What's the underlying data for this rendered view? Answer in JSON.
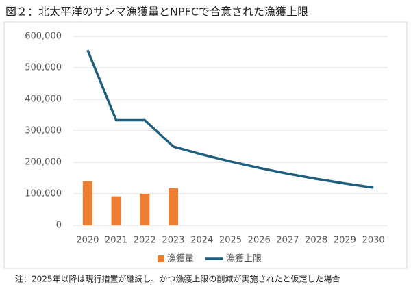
{
  "chart_data": {
    "type": "bar",
    "title": "図２：北太平洋のサンマ漁獲量とNPFCで合意された漁獲上限",
    "note": "注：2025年以降は現行措置が継続し、かつ漁獲上限の削減が実施されたと仮定した場合",
    "categories": [
      "2020",
      "2021",
      "2022",
      "2023",
      "2024",
      "2025",
      "2026",
      "2027",
      "2028",
      "2029",
      "2030"
    ],
    "series": [
      {
        "name": "漁獲量",
        "type": "bar",
        "color": "#ed7d31",
        "values": [
          140000,
          92000,
          100000,
          118000,
          null,
          null,
          null,
          null,
          null,
          null,
          null
        ]
      },
      {
        "name": "漁獲上限",
        "type": "line",
        "color": "#1f5f7d",
        "values": [
          556250,
          333750,
          333750,
          250000,
          225000,
          202500,
          182250,
          164000,
          147600,
          132800,
          119600
        ]
      }
    ],
    "ylim": [
      0,
      600000
    ],
    "yticks": [
      0,
      {
        "value": 100000,
        "label": "100,000"
      },
      {
        "value": 200000,
        "label": "200,000"
      },
      {
        "value": 300000,
        "label": "300,000"
      },
      {
        "value": 400000,
        "label": "400,000"
      },
      {
        "value": 500000,
        "label": "500,000"
      },
      {
        "value": 600000,
        "label": "600,000"
      }
    ],
    "grid": true,
    "legend": "bottom"
  }
}
